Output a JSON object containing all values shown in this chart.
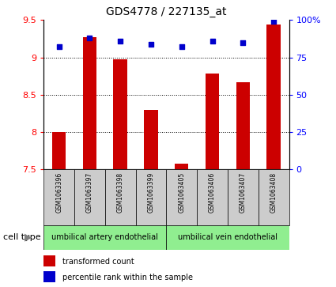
{
  "title": "GDS4778 / 227135_at",
  "samples": [
    "GSM1063396",
    "GSM1063397",
    "GSM1063398",
    "GSM1063399",
    "GSM1063405",
    "GSM1063406",
    "GSM1063407",
    "GSM1063408"
  ],
  "transformed_count": [
    8.0,
    9.27,
    8.97,
    8.3,
    7.58,
    8.78,
    8.67,
    9.44
  ],
  "percentile_rank": [
    82,
    88,
    86,
    84,
    82,
    86,
    85,
    99
  ],
  "ylim_left": [
    7.5,
    9.5
  ],
  "ylim_right": [
    0,
    100
  ],
  "yticks_left": [
    7.5,
    8.0,
    8.5,
    9.0,
    9.5
  ],
  "yticks_right": [
    0,
    25,
    50,
    75,
    100
  ],
  "bar_color": "#cc0000",
  "dot_color": "#0000cc",
  "group1_label": "umbilical artery endothelial",
  "group2_label": "umbilical vein endothelial",
  "group1_indices": [
    0,
    1,
    2,
    3
  ],
  "group2_indices": [
    4,
    5,
    6,
    7
  ],
  "group_bg_color": "#90ee90",
  "sample_bg_color": "#cccccc",
  "legend_bar_label": "transformed count",
  "legend_dot_label": "percentile rank within the sample",
  "cell_type_label": "cell type",
  "grid_yticks": [
    8.0,
    8.5,
    9.0
  ],
  "bar_width": 0.45
}
